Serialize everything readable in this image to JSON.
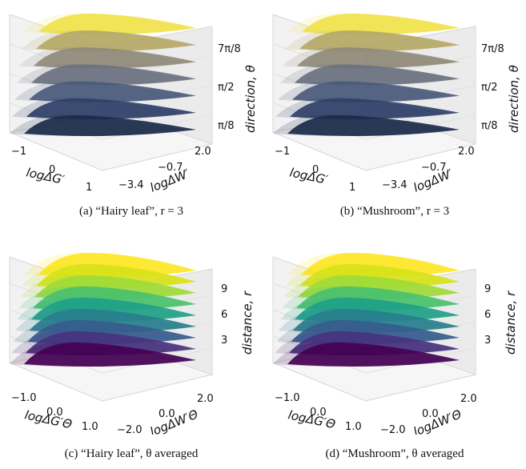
{
  "chart_data": [
    {
      "type": "scatter",
      "caption": "(a) “Hairy leaf”, r = 3",
      "xlabel": "logΔG′",
      "ylabel": "logΔW′",
      "zlabel": "direction, θ",
      "x_ticks": [
        "−1",
        "0",
        "1"
      ],
      "y_ticks": [
        "−3.4",
        "−0.7",
        "2.0"
      ],
      "z_ticks": [
        "π/8",
        "π/2",
        "7π/8"
      ],
      "series": [
        {
          "z": 0.125,
          "color": "#1b2a4a"
        },
        {
          "z": 0.25,
          "color": "#2f3f68"
        },
        {
          "z": 0.375,
          "color": "#4a5a7b"
        },
        {
          "z": 0.5,
          "color": "#6b7180"
        },
        {
          "z": 0.625,
          "color": "#8f8a78"
        },
        {
          "z": 0.75,
          "color": "#b5a867"
        },
        {
          "z": 0.875,
          "color": "#f1e24b"
        }
      ]
    },
    {
      "type": "scatter",
      "caption": "(b) “Mushroom”, r = 3",
      "xlabel": "logΔG′",
      "ylabel": "logΔW′",
      "zlabel": "direction, θ",
      "x_ticks": [
        "−1",
        "0",
        "1"
      ],
      "y_ticks": [
        "−3.4",
        "−0.7",
        "2.0"
      ],
      "z_ticks": [
        "π/8",
        "π/2",
        "7π/8"
      ],
      "series": [
        {
          "z": 0.125,
          "color": "#1b2a4a"
        },
        {
          "z": 0.25,
          "color": "#2f3f68"
        },
        {
          "z": 0.375,
          "color": "#4a5a7b"
        },
        {
          "z": 0.5,
          "color": "#6b7180"
        },
        {
          "z": 0.625,
          "color": "#8f8a78"
        },
        {
          "z": 0.75,
          "color": "#b5a867"
        },
        {
          "z": 0.875,
          "color": "#f1e24b"
        }
      ]
    },
    {
      "type": "scatter",
      "caption": "(c) “Hairy leaf”, θ averaged",
      "xlabel": "logΔG′Θ",
      "ylabel": "logΔW′Θ",
      "zlabel": "distance, r",
      "x_ticks": [
        "−1.0",
        "0.0",
        "1.0"
      ],
      "y_ticks": [
        "−2.0",
        "0.0",
        "2.0"
      ],
      "z_ticks": [
        "3",
        "6",
        "9"
      ],
      "series": [
        {
          "z": 1,
          "color": "#440154"
        },
        {
          "z": 2,
          "color": "#46337e"
        },
        {
          "z": 3,
          "color": "#365c8d"
        },
        {
          "z": 4,
          "color": "#277f8e"
        },
        {
          "z": 5,
          "color": "#1fa187"
        },
        {
          "z": 6,
          "color": "#4ac16d"
        },
        {
          "z": 7,
          "color": "#a0da39"
        },
        {
          "z": 8,
          "color": "#d7e219"
        },
        {
          "z": 9,
          "color": "#fde725"
        }
      ]
    },
    {
      "type": "scatter",
      "caption": "(d) “Mushroom”, θ averaged",
      "xlabel": "logΔG′Θ",
      "ylabel": "logΔW′Θ",
      "zlabel": "distance, r",
      "x_ticks": [
        "−1.0",
        "0.0",
        "1.0"
      ],
      "y_ticks": [
        "−2.0",
        "0.0",
        "2.0"
      ],
      "z_ticks": [
        "3",
        "6",
        "9"
      ],
      "series": [
        {
          "z": 1,
          "color": "#440154"
        },
        {
          "z": 2,
          "color": "#46337e"
        },
        {
          "z": 3,
          "color": "#365c8d"
        },
        {
          "z": 4,
          "color": "#277f8e"
        },
        {
          "z": 5,
          "color": "#1fa187"
        },
        {
          "z": 6,
          "color": "#4ac16d"
        },
        {
          "z": 7,
          "color": "#a0da39"
        },
        {
          "z": 8,
          "color": "#d7e219"
        },
        {
          "z": 9,
          "color": "#fde725"
        }
      ]
    }
  ]
}
